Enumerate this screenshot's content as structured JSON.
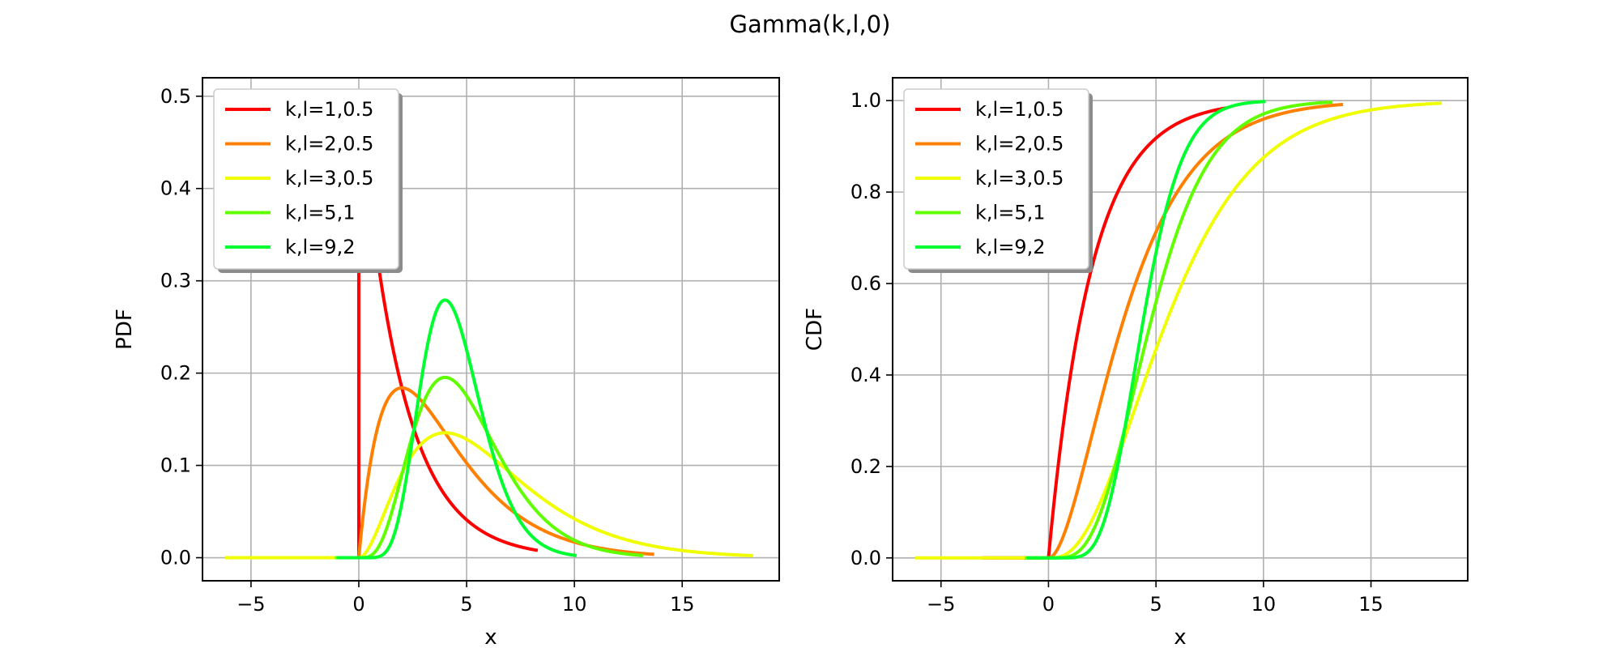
{
  "figure": {
    "title": "Gamma(k,l,0)"
  },
  "chart_data": [
    {
      "type": "line",
      "title": "",
      "xlabel": "x",
      "ylabel": "PDF",
      "xlim": [
        -7.25,
        19.5
      ],
      "ylim": [
        -0.025,
        0.52
      ],
      "xticks": [
        -5,
        0,
        5,
        10,
        15
      ],
      "xtick_labels": [
        "−5",
        "0",
        "5",
        "10",
        "15"
      ],
      "yticks": [
        0.0,
        0.1,
        0.2,
        0.3,
        0.4,
        0.5
      ],
      "ytick_labels": [
        "0.0",
        "0.1",
        "0.2",
        "0.3",
        "0.4",
        "0.5"
      ],
      "grid": true,
      "legend": "upper-left",
      "series": [
        {
          "name": "k,l=1,0.5",
          "color": "#ff0000",
          "k": 1,
          "theta": 2,
          "points": [
            [
              -3.1,
              0
            ],
            [
              0,
              0
            ],
            [
              0,
              0.5
            ],
            [
              0.5,
              0.389
            ],
            [
              1,
              0.303
            ],
            [
              1.5,
              0.236
            ],
            [
              2,
              0.184
            ],
            [
              3,
              0.112
            ],
            [
              4,
              0.068
            ],
            [
              5,
              0.041
            ],
            [
              6,
              0.025
            ],
            [
              7,
              0.015
            ],
            [
              8.3,
              0.008
            ]
          ]
        },
        {
          "name": "k,l=2,0.5",
          "color": "#ff8000",
          "k": 2,
          "theta": 2,
          "points": [
            [
              -2.7,
              0
            ],
            [
              0,
              0
            ],
            [
              0.5,
              0.097
            ],
            [
              1,
              0.152
            ],
            [
              2,
              0.184
            ],
            [
              3,
              0.167
            ],
            [
              4,
              0.135
            ],
            [
              6,
              0.075
            ],
            [
              8,
              0.037
            ],
            [
              10,
              0.017
            ],
            [
              12,
              0.007
            ],
            [
              13.7,
              0.004
            ]
          ]
        },
        {
          "name": "k,l=3,0.5",
          "color": "#f0ff00",
          "k": 3,
          "theta": 2,
          "points": [
            [
              -6.2,
              0
            ],
            [
              0,
              0
            ],
            [
              1,
              0.038
            ],
            [
              2,
              0.092
            ],
            [
              3,
              0.126
            ],
            [
              4,
              0.135
            ],
            [
              5,
              0.128
            ],
            [
              6,
              0.112
            ],
            [
              8,
              0.073
            ],
            [
              10,
              0.042
            ],
            [
              12,
              0.022
            ],
            [
              14,
              0.011
            ],
            [
              16,
              0.005
            ],
            [
              18.3,
              0.002
            ]
          ]
        },
        {
          "name": "k,l=5,1",
          "color": "#60ff00",
          "k": 5,
          "theta": 1,
          "points": [
            [
              -1.1,
              0
            ],
            [
              0,
              0
            ],
            [
              1,
              0.015
            ],
            [
              2,
              0.09
            ],
            [
              3,
              0.168
            ],
            [
              4,
              0.195
            ],
            [
              5,
              0.175
            ],
            [
              6,
              0.134
            ],
            [
              7,
              0.091
            ],
            [
              8,
              0.057
            ],
            [
              10,
              0.019
            ],
            [
              12,
              0.005
            ],
            [
              13.2,
              0.002
            ]
          ]
        },
        {
          "name": "k,l=9,2",
          "color": "#00ff30",
          "k": 9,
          "theta": 0.5,
          "points": [
            [
              -1.0,
              0
            ],
            [
              0,
              0
            ],
            [
              1,
              0.003
            ],
            [
              2,
              0.054
            ],
            [
              3,
              0.184
            ],
            [
              4,
              0.279
            ],
            [
              5,
              0.261
            ],
            [
              6,
              0.175
            ],
            [
              7,
              0.092
            ],
            [
              8,
              0.041
            ],
            [
              9,
              0.016
            ],
            [
              10.1,
              0.005
            ]
          ]
        }
      ]
    },
    {
      "type": "line",
      "title": "",
      "xlabel": "x",
      "ylabel": "CDF",
      "xlim": [
        -7.25,
        19.5
      ],
      "ylim": [
        -0.05,
        1.05
      ],
      "xticks": [
        -5,
        0,
        5,
        10,
        15
      ],
      "xtick_labels": [
        "−5",
        "0",
        "5",
        "10",
        "15"
      ],
      "yticks": [
        0.0,
        0.2,
        0.4,
        0.6,
        0.8,
        1.0
      ],
      "ytick_labels": [
        "0.0",
        "0.2",
        "0.4",
        "0.6",
        "0.8",
        "1.0"
      ],
      "grid": true,
      "legend": "upper-left",
      "series": [
        {
          "name": "k,l=1,0.5",
          "color": "#ff0000",
          "k": 1,
          "theta": 2,
          "points": [
            [
              -3.1,
              0
            ],
            [
              0,
              0
            ],
            [
              1,
              0.393
            ],
            [
              2,
              0.632
            ],
            [
              3,
              0.777
            ],
            [
              4,
              0.865
            ],
            [
              6,
              0.95
            ],
            [
              8.3,
              0.984
            ]
          ]
        },
        {
          "name": "k,l=2,0.5",
          "color": "#ff8000",
          "k": 2,
          "theta": 2,
          "points": [
            [
              -2.7,
              0
            ],
            [
              0,
              0
            ],
            [
              1,
              0.09
            ],
            [
              2,
              0.264
            ],
            [
              4,
              0.594
            ],
            [
              6,
              0.801
            ],
            [
              8,
              0.908
            ],
            [
              10,
              0.96
            ],
            [
              13.7,
              0.991
            ]
          ]
        },
        {
          "name": "k,l=3,0.5",
          "color": "#f0ff00",
          "k": 3,
          "theta": 2,
          "points": [
            [
              -6.2,
              0
            ],
            [
              0,
              0
            ],
            [
              2,
              0.08
            ],
            [
              4,
              0.323
            ],
            [
              6,
              0.577
            ],
            [
              8,
              0.762
            ],
            [
              10,
              0.875
            ],
            [
              12,
              0.938
            ],
            [
              15,
              0.98
            ],
            [
              18.3,
              0.994
            ]
          ]
        },
        {
          "name": "k,l=5,1",
          "color": "#60ff00",
          "k": 5,
          "theta": 1,
          "points": [
            [
              -1.1,
              0
            ],
            [
              0,
              0
            ],
            [
              2,
              0.053
            ],
            [
              4,
              0.371
            ],
            [
              6,
              0.715
            ],
            [
              8,
              0.9
            ],
            [
              10,
              0.971
            ],
            [
              13.2,
              0.996
            ]
          ]
        },
        {
          "name": "k,l=9,2",
          "color": "#00ff30",
          "k": 9,
          "theta": 0.5,
          "points": [
            [
              -1.0,
              0
            ],
            [
              0,
              0
            ],
            [
              2,
              0.021
            ],
            [
              3,
              0.153
            ],
            [
              4,
              0.408
            ],
            [
              5,
              0.667
            ],
            [
              6,
              0.85
            ],
            [
              7,
              0.941
            ],
            [
              8,
              0.979
            ],
            [
              10.1,
              0.998
            ]
          ]
        }
      ]
    }
  ]
}
